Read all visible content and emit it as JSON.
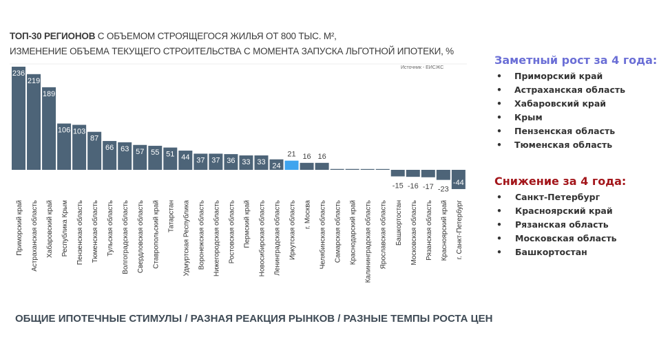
{
  "title": {
    "bold": "ТОП-30 РЕГИОНОВ",
    "line1_rest": " С ОБЪЕМОМ СТРОЯЩЕГОСЯ ЖИЛЬЯ ОТ 800 ТЫС. М²,",
    "line2": "ИЗМЕНЕНИЕ ОБЪЕМА ТЕКУЩЕГО СТРОИТЕЛЬСТВА С МОМЕНТА ЗАПУСКА ЛЬГОТНОЙ ИПОТЕКИ, %"
  },
  "source": "Источник - ЕИСЖС",
  "chart_data": {
    "type": "bar",
    "categories": [
      "Приморский край",
      "Астраханская область",
      "Хабаровский край",
      "Республика Крым",
      "Пензенская область",
      "Тюменская область",
      "Тульская область",
      "Волгоградская область",
      "Свердловская область",
      "Ставропольский край",
      "Татарстан",
      "Удмуртская Республика",
      "Воронежская область",
      "Нижегородская область",
      "Ростовская область",
      "Пермский край",
      "Новосибирская область",
      "Ленинградская область",
      "Иркутская область",
      "г. Москва",
      "Челябинская область",
      "Самарская область",
      "Краснодарский край",
      "Калининградская область",
      "Ярославская область",
      "Башкортостан",
      "Московская область",
      "Рязанская область",
      "Красноярский край",
      "г. Санкт-Петербург"
    ],
    "values": [
      236,
      219,
      189,
      106,
      103,
      87,
      66,
      63,
      57,
      55,
      51,
      44,
      37,
      37,
      36,
      33,
      33,
      24,
      21,
      16,
      16,
      2,
      2,
      1,
      1,
      -15,
      -16,
      -17,
      -23,
      -44
    ],
    "value_labels": [
      "236",
      "219",
      "189",
      "106",
      "103",
      "87",
      "66",
      "63",
      "57",
      "55",
      "51",
      "44",
      "37",
      "37",
      "36",
      "33",
      "33",
      "24",
      "21",
      "16",
      "16",
      "",
      "",
      "",
      "",
      "-15",
      "-16",
      "-17",
      "-23",
      "-44"
    ],
    "highlight_category": "Иркутская область",
    "colors": {
      "bar": "#4d6478",
      "highlight": "#3fa4ee"
    },
    "ylim": [
      -44,
      236
    ],
    "grid": false
  },
  "panel": {
    "growth_title": "Заметный рост за 4 года:",
    "growth_items": [
      "Приморский край",
      "Астраханская область",
      "Хабаровский край",
      "Крым",
      "Пензенская область",
      "Тюменская область"
    ],
    "decline_title": "Снижение за 4 года:",
    "decline_items": [
      "Санкт-Петербург",
      "Красноярский край",
      "Рязанская область",
      "Московская область",
      "Башкортостан"
    ],
    "bullet": "•",
    "growth_color": "#6b6fd6",
    "decline_color": "#a3161b"
  },
  "footer": "ОБЩИЕ ИПОТЕЧНЫЕ СТИМУЛЫ / РАЗНАЯ РЕАКЦИЯ РЫНКОВ / РАЗНЫЕ ТЕМПЫ РОСТА ЦЕН"
}
